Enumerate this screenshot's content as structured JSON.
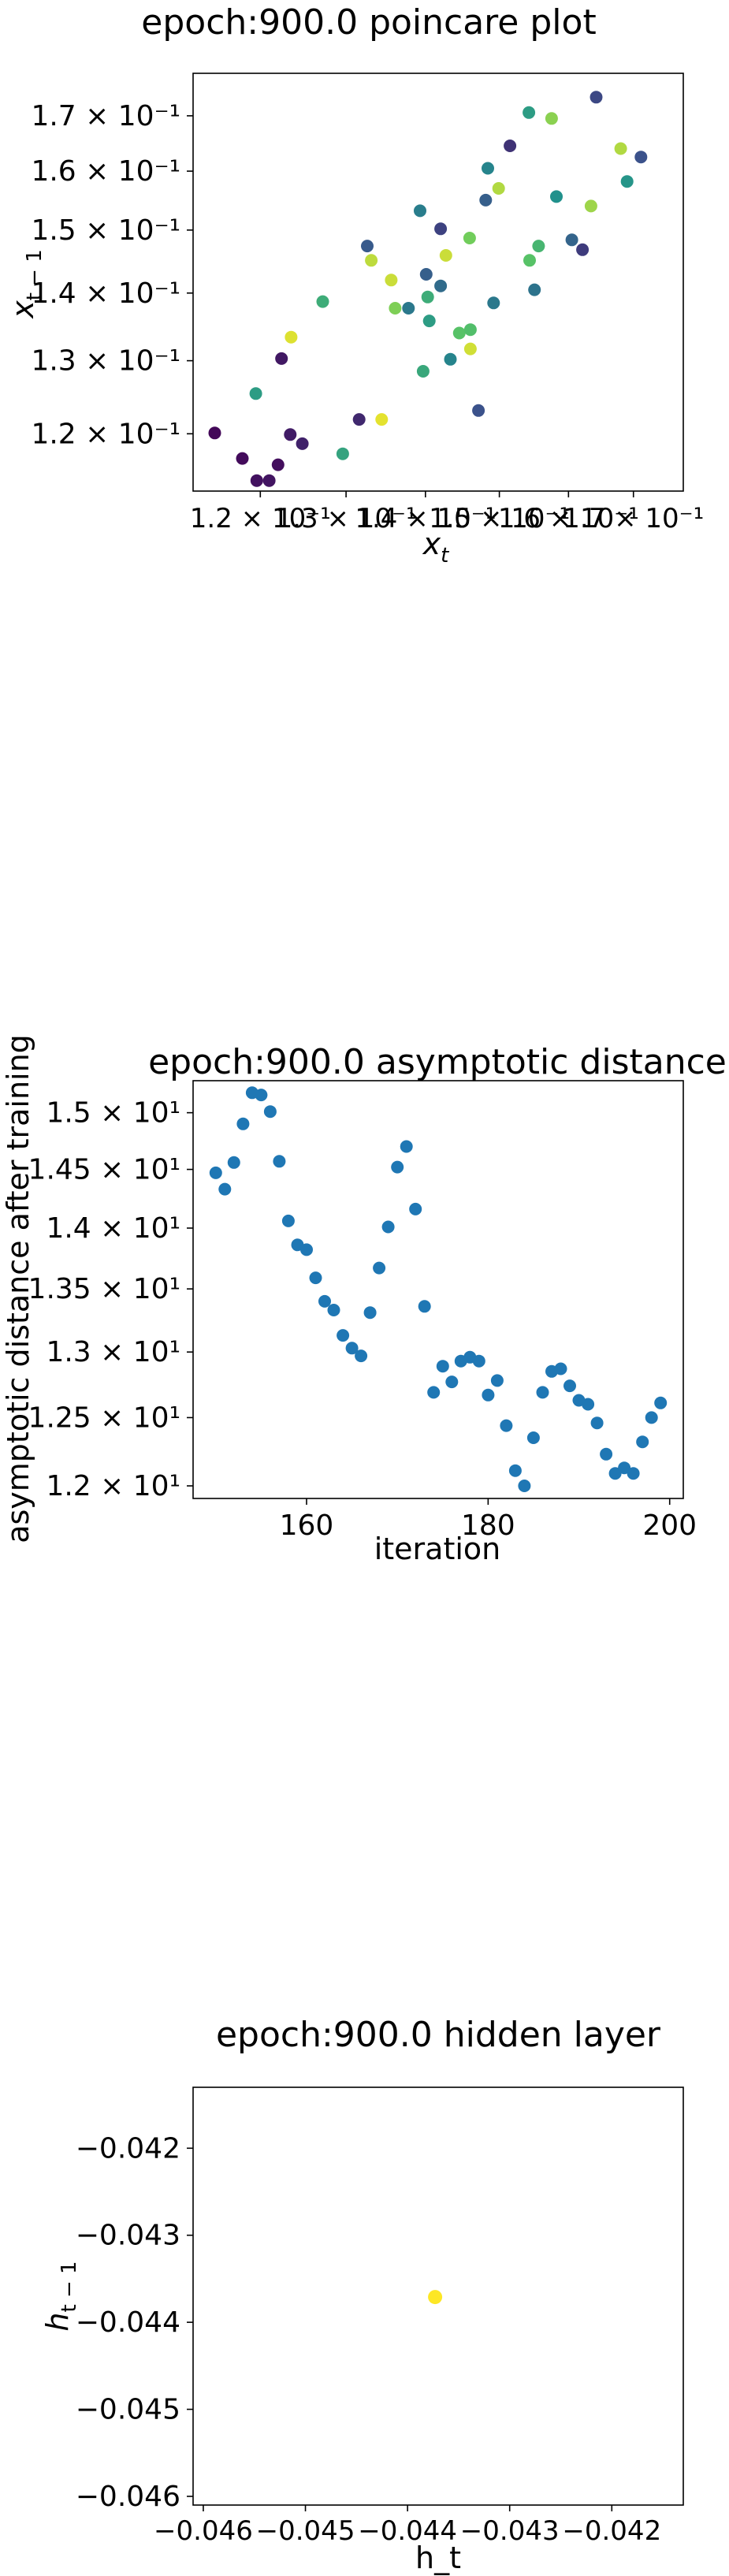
{
  "chart_data": [
    {
      "type": "scatter",
      "title": "epoch:900.0 poincare plot",
      "xlabel": "x_t",
      "ylabel": "x_{t-1}",
      "xscale": "log",
      "yscale": "log",
      "xlim": [
        0.1127,
        0.1781
      ],
      "ylim": [
        0.1127,
        0.1781
      ],
      "grid": false,
      "colormap": "viridis",
      "x_tick_labels": [
        "1.2 × 10⁻¹",
        "1.3 × 10⁻¹",
        "1.4 × 10⁻¹",
        "1.5 × 10⁻¹",
        "1.6 × 10⁻¹",
        "1.7 × 10⁻¹"
      ],
      "y_tick_labels": [
        "1.2 × 10⁻¹",
        "1.3 × 10⁻¹",
        "1.4 × 10⁻¹",
        "1.5 × 10⁻¹",
        "1.6 × 10⁻¹",
        "1.7 × 10⁻¹"
      ],
      "points": [
        {
          "x": 0.115,
          "y": 0.1201,
          "c": 0.02
        },
        {
          "x": 0.118,
          "y": 0.1168,
          "c": 0.03
        },
        {
          "x": 0.1196,
          "y": 0.114,
          "c": 0.05
        },
        {
          "x": 0.121,
          "y": 0.114,
          "c": 0.06
        },
        {
          "x": 0.122,
          "y": 0.116,
          "c": 0.04
        },
        {
          "x": 0.1224,
          "y": 0.1303,
          "c": 0.07
        },
        {
          "x": 0.1234,
          "y": 0.1199,
          "c": 0.08
        },
        {
          "x": 0.1248,
          "y": 0.1187,
          "c": 0.1
        },
        {
          "x": 0.1235,
          "y": 0.1334,
          "c": 0.95
        },
        {
          "x": 0.1195,
          "y": 0.1254,
          "c": 0.55
        },
        {
          "x": 0.1272,
          "y": 0.1387,
          "c": 0.62
        },
        {
          "x": 0.1296,
          "y": 0.1174,
          "c": 0.58
        },
        {
          "x": 0.1316,
          "y": 0.1219,
          "c": 0.12
        },
        {
          "x": 0.1326,
          "y": 0.1474,
          "c": 0.28
        },
        {
          "x": 0.1331,
          "y": 0.1451,
          "c": 0.9
        },
        {
          "x": 0.1344,
          "y": 0.1219,
          "c": 0.96
        },
        {
          "x": 0.1356,
          "y": 0.142,
          "c": 0.92
        },
        {
          "x": 0.1361,
          "y": 0.1377,
          "c": 0.8
        },
        {
          "x": 0.1378,
          "y": 0.1377,
          "c": 0.4
        },
        {
          "x": 0.1393,
          "y": 0.1532,
          "c": 0.42
        },
        {
          "x": 0.1397,
          "y": 0.1285,
          "c": 0.6
        },
        {
          "x": 0.1401,
          "y": 0.1429,
          "c": 0.3
        },
        {
          "x": 0.1403,
          "y": 0.1394,
          "c": 0.62
        },
        {
          "x": 0.1405,
          "y": 0.1358,
          "c": 0.55
        },
        {
          "x": 0.142,
          "y": 0.1502,
          "c": 0.2
        },
        {
          "x": 0.142,
          "y": 0.1411,
          "c": 0.35
        },
        {
          "x": 0.1427,
          "y": 0.1459,
          "c": 0.92
        },
        {
          "x": 0.1433,
          "y": 0.1302,
          "c": 0.45
        },
        {
          "x": 0.1445,
          "y": 0.134,
          "c": 0.72
        },
        {
          "x": 0.1459,
          "y": 0.1487,
          "c": 0.78
        },
        {
          "x": 0.146,
          "y": 0.1345,
          "c": 0.7
        },
        {
          "x": 0.146,
          "y": 0.1317,
          "c": 0.93
        },
        {
          "x": 0.1471,
          "y": 0.1231,
          "c": 0.25
        },
        {
          "x": 0.1481,
          "y": 0.155,
          "c": 0.3
        },
        {
          "x": 0.1484,
          "y": 0.1605,
          "c": 0.45
        },
        {
          "x": 0.1492,
          "y": 0.1385,
          "c": 0.4
        },
        {
          "x": 0.1499,
          "y": 0.157,
          "c": 0.88
        },
        {
          "x": 0.1515,
          "y": 0.1645,
          "c": 0.15
        },
        {
          "x": 0.1542,
          "y": 0.1706,
          "c": 0.55
        },
        {
          "x": 0.1543,
          "y": 0.1451,
          "c": 0.72
        },
        {
          "x": 0.155,
          "y": 0.1405,
          "c": 0.38
        },
        {
          "x": 0.1556,
          "y": 0.1474,
          "c": 0.66
        },
        {
          "x": 0.1575,
          "y": 0.1695,
          "c": 0.82
        },
        {
          "x": 0.1582,
          "y": 0.1556,
          "c": 0.5
        },
        {
          "x": 0.1605,
          "y": 0.1484,
          "c": 0.32
        },
        {
          "x": 0.1621,
          "y": 0.1468,
          "c": 0.18
        },
        {
          "x": 0.1634,
          "y": 0.154,
          "c": 0.85
        },
        {
          "x": 0.1642,
          "y": 0.1735,
          "c": 0.22
        },
        {
          "x": 0.168,
          "y": 0.164,
          "c": 0.88
        },
        {
          "x": 0.169,
          "y": 0.1582,
          "c": 0.52
        },
        {
          "x": 0.1712,
          "y": 0.1625,
          "c": 0.25
        }
      ]
    },
    {
      "type": "scatter",
      "title": "epoch:900.0 asymptotic distance",
      "xlabel": "iteration",
      "ylabel": "asymptotic distance after training",
      "yscale": "log",
      "xlim": [
        147.5,
        201.5
      ],
      "ylim": [
        11.91,
        15.29
      ],
      "grid": false,
      "color": "#1f77b4",
      "x_ticks": [
        160,
        180,
        200
      ],
      "x_tick_labels": [
        "160",
        "180",
        "200"
      ],
      "y_tick_labels": [
        "1.2 × 10¹",
        "1.25 × 10¹",
        "1.3 × 10¹",
        "1.35 × 10¹",
        "1.4 × 10¹",
        "1.45 × 10¹",
        "1.5 × 10¹"
      ],
      "x": [
        150,
        151,
        152,
        153,
        154,
        155,
        156,
        157,
        158,
        159,
        160,
        161,
        162,
        163,
        164,
        165,
        166,
        167,
        168,
        169,
        170,
        171,
        172,
        173,
        174,
        175,
        176,
        177,
        178,
        179,
        180,
        181,
        182,
        183,
        184,
        185,
        186,
        187,
        188,
        189,
        190,
        191,
        192,
        193,
        194,
        195,
        196,
        197,
        198,
        199
      ],
      "y": [
        14.47,
        14.33,
        14.56,
        14.9,
        15.18,
        15.16,
        15.01,
        14.57,
        14.06,
        13.86,
        13.82,
        13.59,
        13.4,
        13.33,
        13.13,
        13.03,
        12.97,
        13.31,
        13.67,
        14.01,
        14.52,
        14.7,
        14.16,
        13.36,
        12.69,
        12.89,
        12.77,
        12.93,
        12.96,
        12.93,
        12.67,
        12.78,
        12.44,
        12.11,
        12.0,
        12.35,
        12.69,
        12.85,
        12.87,
        12.74,
        12.63,
        12.6,
        12.46,
        12.23,
        12.09,
        12.13,
        12.09,
        12.32,
        12.5,
        12.61
      ]
    },
    {
      "type": "scatter",
      "title": "epoch:900.0 hidden layer",
      "xlabel": "h_t",
      "ylabel": "h_{t-1}",
      "xlim": [
        -0.0461,
        -0.0413
      ],
      "ylim": [
        -0.0461,
        -0.0413
      ],
      "grid": false,
      "color": "#fde725",
      "x_ticks": [
        -0.046,
        -0.045,
        -0.044,
        -0.043,
        -0.042
      ],
      "y_ticks": [
        -0.042,
        -0.043,
        -0.044,
        -0.045,
        -0.046
      ],
      "x_tick_labels": [
        "−0.046",
        "−0.045",
        "−0.044",
        "−0.043",
        "−0.042"
      ],
      "y_tick_labels": [
        "−0.042",
        "−0.043",
        "−0.044",
        "−0.045",
        "−0.046"
      ],
      "points": [
        {
          "x": -0.04373,
          "y": -0.04371
        }
      ]
    }
  ]
}
